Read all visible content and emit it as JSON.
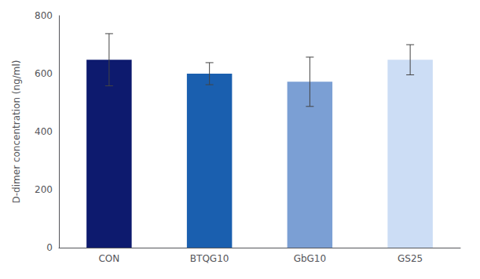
{
  "chart_data": {
    "type": "bar",
    "categories": [
      "CON",
      "BTQG10",
      "GbG10",
      "GS25"
    ],
    "values": [
      648,
      600,
      572,
      648
    ],
    "errors": [
      90,
      38,
      85,
      52
    ],
    "colors": [
      "#0d1a6e",
      "#1a5faf",
      "#7b9fd4",
      "#ccddf5"
    ],
    "ylabel": "D-dimer concentration (ng/ml)",
    "ylim": [
      0,
      800
    ],
    "yticks": [
      0,
      200,
      400,
      600,
      800
    ],
    "grid": false
  }
}
